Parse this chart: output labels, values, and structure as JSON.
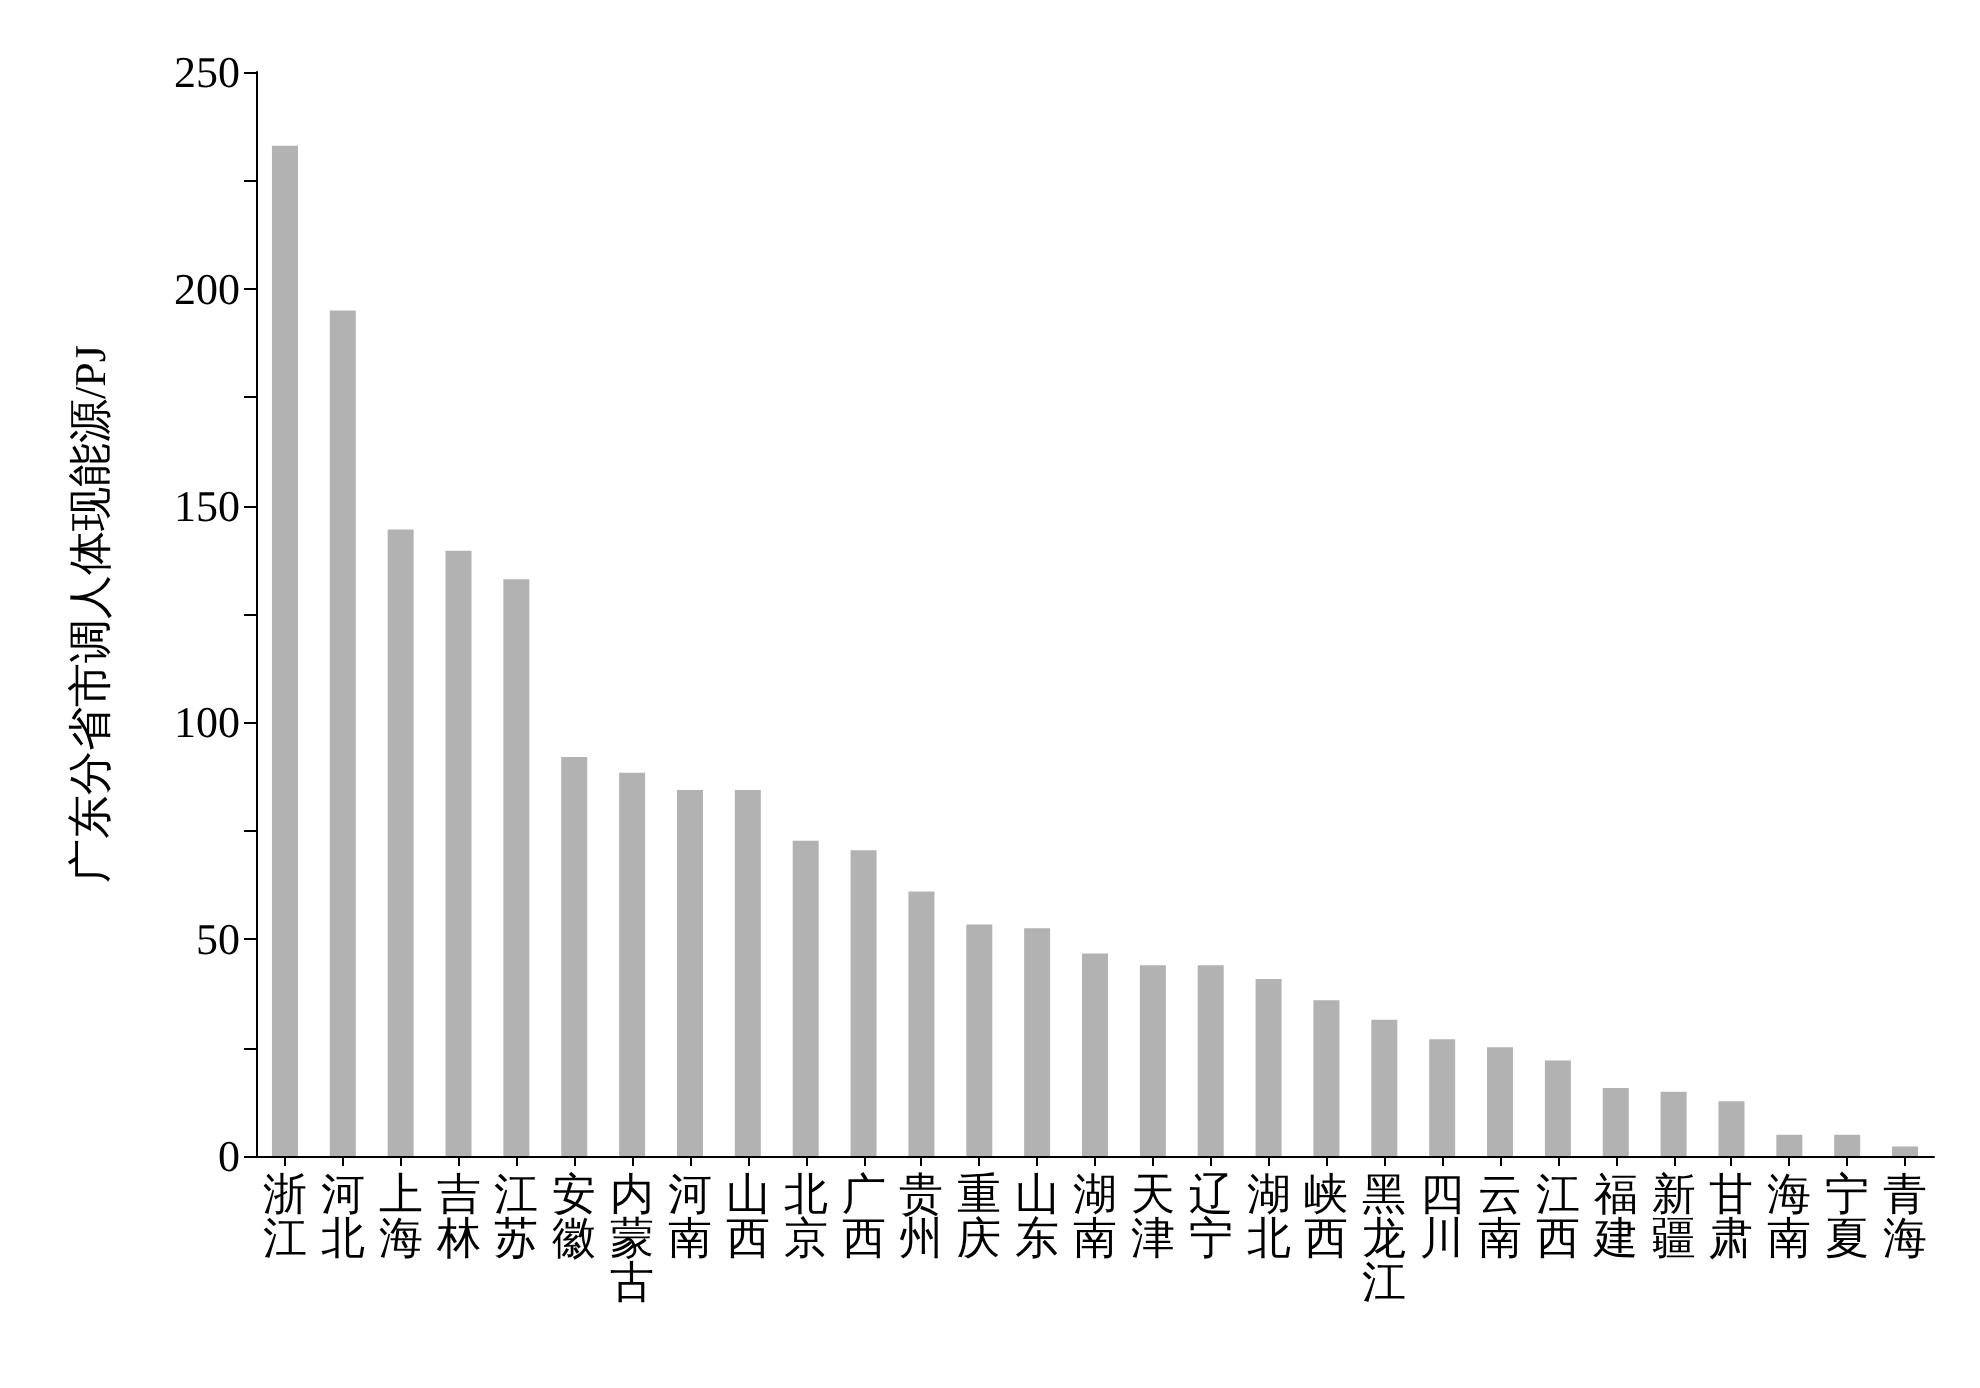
{
  "chart_data": {
    "type": "bar",
    "ylabel": "广东分省市调人体现能源/PJ",
    "categories": [
      "浙江",
      "河北",
      "上海",
      "吉林",
      "江苏",
      "安徽",
      "内蒙古",
      "河南",
      "山西",
      "北京",
      "广西",
      "贵州",
      "重庆",
      "山东",
      "湖南",
      "天津",
      "辽宁",
      "湖北",
      "峡西",
      "黑龙江",
      "四川",
      "云南",
      "江西",
      "福建",
      "新疆",
      "甘肃",
      "海南",
      "宁夏",
      "青海"
    ],
    "values": [
      233,
      195,
      144.5,
      139.6,
      133,
      92,
      88.4,
      84.4,
      84.4,
      72.7,
      70.5,
      61,
      53.4,
      52.5,
      46.7,
      44,
      44,
      40.8,
      35.9,
      31.4,
      26.9,
      25.1,
      22,
      15.7,
      14.8,
      12.6,
      4.9,
      4.9,
      2.2
    ],
    "color": "#b2b2b2",
    "ylim": [
      0,
      250
    ],
    "yticks": [
      0,
      {
        "value": 25,
        "label": null
      },
      50,
      {
        "value": 75,
        "label": null
      },
      100,
      {
        "value": 125,
        "label": null
      },
      150,
      {
        "value": 175,
        "label": null
      },
      200,
      {
        "value": 225,
        "label": null
      },
      250
    ],
    "grid": false
  }
}
